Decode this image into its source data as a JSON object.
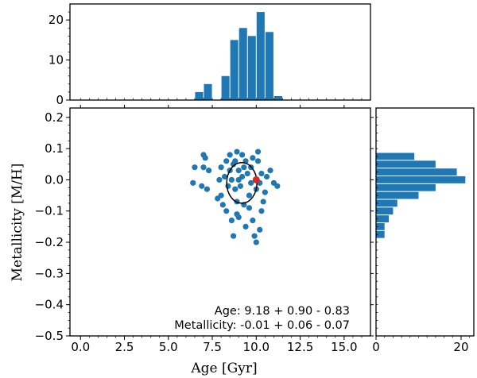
{
  "chart_data": {
    "type": "scatter",
    "xlabel": "Age [Gyr]",
    "ylabel": "Metallicity [M/H]",
    "xlim": [
      -0.6,
      16.5
    ],
    "ylim": [
      -0.5,
      0.23
    ],
    "x_ticks": [
      0.0,
      2.5,
      5.0,
      7.5,
      10.0,
      12.5,
      15.0
    ],
    "x_tick_labels": [
      "0.0",
      "2.5",
      "5.0",
      "7.5",
      "10.0",
      "12.5",
      "15.0"
    ],
    "y_ticks": [
      0.2,
      0.1,
      0.0,
      -0.1,
      -0.2,
      -0.3,
      -0.4,
      -0.5
    ],
    "y_tick_labels": [
      "0.2",
      "0.1",
      "0.0",
      "−0.1",
      "−0.2",
      "−0.3",
      "−0.4",
      "−0.5"
    ],
    "point_color": "#1f77b4",
    "highlight_color": "#d62728",
    "points": [
      [
        6.5,
        0.04
      ],
      [
        6.4,
        -0.01
      ],
      [
        7.0,
        0.08
      ],
      [
        7.1,
        0.07
      ],
      [
        7.3,
        0.03
      ],
      [
        7.2,
        -0.03
      ],
      [
        6.9,
        -0.02
      ],
      [
        7.0,
        0.04
      ],
      [
        8.0,
        0.04
      ],
      [
        8.3,
        0.06
      ],
      [
        8.5,
        0.08
      ],
      [
        8.7,
        0.05
      ],
      [
        8.6,
        0.0
      ],
      [
        8.4,
        -0.02
      ],
      [
        8.2,
        0.01
      ],
      [
        8.0,
        -0.05
      ],
      [
        7.8,
        -0.06
      ],
      [
        7.9,
        0.0
      ],
      [
        8.9,
        0.09
      ],
      [
        9.2,
        0.08
      ],
      [
        9.4,
        0.06
      ],
      [
        9.0,
        0.03
      ],
      [
        9.2,
        0.01
      ],
      [
        9.1,
        -0.02
      ],
      [
        8.8,
        -0.03
      ],
      [
        8.9,
        -0.07
      ],
      [
        9.3,
        -0.08
      ],
      [
        9.6,
        -0.05
      ],
      [
        9.5,
        0.02
      ],
      [
        9.7,
        0.04
      ],
      [
        9.8,
        0.07
      ],
      [
        10.1,
        0.06
      ],
      [
        10.3,
        0.02
      ],
      [
        10.2,
        -0.01
      ],
      [
        10.0,
        -0.03
      ],
      [
        10.5,
        -0.04
      ],
      [
        10.6,
        0.01
      ],
      [
        10.8,
        0.03
      ],
      [
        11.0,
        -0.01
      ],
      [
        11.2,
        -0.02
      ],
      [
        8.3,
        -0.1
      ],
      [
        8.6,
        -0.13
      ],
      [
        9.0,
        -0.12
      ],
      [
        9.4,
        -0.15
      ],
      [
        8.9,
        -0.11
      ],
      [
        9.8,
        -0.13
      ],
      [
        10.3,
        -0.1
      ],
      [
        10.2,
        -0.16
      ],
      [
        9.9,
        -0.18
      ],
      [
        10.0,
        -0.2
      ],
      [
        8.7,
        -0.18
      ],
      [
        9.6,
        -0.09
      ],
      [
        8.1,
        -0.08
      ],
      [
        10.4,
        -0.07
      ],
      [
        9.0,
        0.0
      ],
      [
        9.3,
        0.04
      ],
      [
        8.5,
        0.03
      ],
      [
        9.7,
        -0.01
      ],
      [
        10.1,
        0.09
      ],
      [
        8.8,
        0.06
      ]
    ],
    "highlight_point": [
      10.0,
      0.0
    ],
    "ellipse": {
      "center": [
        9.18,
        -0.01
      ],
      "x_half_width": 0.86,
      "y_half_width": 0.065
    },
    "top_histogram": {
      "y_ticks": [
        0,
        10,
        20
      ],
      "y_tick_labels": [
        "0",
        "10",
        "20"
      ],
      "ylim": [
        0,
        24
      ],
      "bins": [
        {
          "x": 6.75,
          "count": 2
        },
        {
          "x": 7.25,
          "count": 4
        },
        {
          "x": 8.25,
          "count": 6
        },
        {
          "x": 8.75,
          "count": 15
        },
        {
          "x": 9.25,
          "count": 18
        },
        {
          "x": 9.75,
          "count": 16
        },
        {
          "x": 10.25,
          "count": 22
        },
        {
          "x": 10.75,
          "count": 17
        },
        {
          "x": 11.25,
          "count": 1
        }
      ],
      "bin_width": 0.5
    },
    "right_histogram": {
      "x_ticks": [
        0,
        20
      ],
      "x_tick_labels": [
        "0",
        "20"
      ],
      "xlim": [
        0,
        23
      ],
      "bins": [
        {
          "y": 0.075,
          "count": 9
        },
        {
          "y": 0.05,
          "count": 14
        },
        {
          "y": 0.025,
          "count": 19
        },
        {
          "y": 0.0,
          "count": 21
        },
        {
          "y": -0.025,
          "count": 14
        },
        {
          "y": -0.05,
          "count": 10
        },
        {
          "y": -0.075,
          "count": 5
        },
        {
          "y": -0.1,
          "count": 4
        },
        {
          "y": -0.125,
          "count": 3
        },
        {
          "y": -0.15,
          "count": 2
        },
        {
          "y": -0.175,
          "count": 2
        }
      ],
      "bin_height": 0.025
    },
    "annotations": [
      "Age: 9.18 + 0.90 - 0.83",
      "Metallicity: -0.01 + 0.06 - 0.07"
    ]
  }
}
